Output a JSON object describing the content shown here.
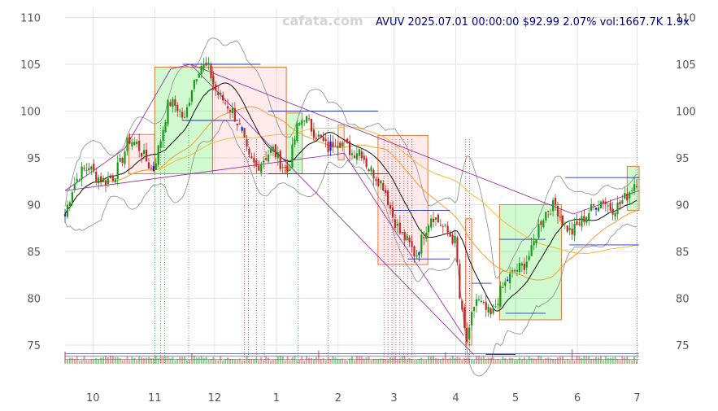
{
  "watermark": "cafata.com",
  "header": "AVUV 2025.07.01 00:00:00 $92.99 2.07% vol:1667.7K 1.9x",
  "chart_data": {
    "type": "candlestick",
    "symbol": "AVUV",
    "ylim": [
      73,
      111
    ],
    "y_ticks": [
      75,
      80,
      85,
      90,
      95,
      100,
      105,
      110
    ],
    "x_ticks": [
      {
        "label": "10",
        "day": 14
      },
      {
        "label": "11",
        "day": 45
      },
      {
        "label": "12",
        "day": 75
      },
      {
        "label": "1",
        "day": 106
      },
      {
        "label": "2",
        "day": 137
      },
      {
        "label": "3",
        "day": 165
      },
      {
        "label": "4",
        "day": 196
      },
      {
        "label": "5",
        "day": 226
      },
      {
        "label": "6",
        "day": 257
      },
      {
        "label": "7",
        "day": 287
      }
    ],
    "close_path": [
      [
        0,
        89
      ],
      [
        4,
        92
      ],
      [
        8,
        93.5
      ],
      [
        12,
        94
      ],
      [
        16,
        93
      ],
      [
        20,
        92.5
      ],
      [
        24,
        93
      ],
      [
        28,
        94.5
      ],
      [
        32,
        97
      ],
      [
        36,
        96.5
      ],
      [
        40,
        95
      ],
      [
        44,
        93.5
      ],
      [
        48,
        97
      ],
      [
        52,
        101
      ],
      [
        56,
        100.5
      ],
      [
        60,
        99
      ],
      [
        64,
        103
      ],
      [
        68,
        105
      ],
      [
        72,
        104.5
      ],
      [
        76,
        102
      ],
      [
        80,
        101
      ],
      [
        84,
        100
      ],
      [
        88,
        98
      ],
      [
        92,
        95
      ],
      [
        96,
        94
      ],
      [
        100,
        95
      ],
      [
        104,
        96
      ],
      [
        108,
        94.5
      ],
      [
        112,
        93.5
      ],
      [
        116,
        98
      ],
      [
        120,
        99.5
      ],
      [
        124,
        98
      ],
      [
        128,
        97
      ],
      [
        132,
        96
      ],
      [
        136,
        97
      ],
      [
        140,
        96.5
      ],
      [
        144,
        95.5
      ],
      [
        148,
        96
      ],
      [
        152,
        94
      ],
      [
        156,
        93
      ],
      [
        160,
        92
      ],
      [
        164,
        89
      ],
      [
        168,
        87
      ],
      [
        172,
        86
      ],
      [
        176,
        84.5
      ],
      [
        180,
        87
      ],
      [
        184,
        89
      ],
      [
        188,
        88
      ],
      [
        192,
        87
      ],
      [
        196,
        86
      ],
      [
        198,
        80
      ],
      [
        200,
        77
      ],
      [
        202,
        75
      ],
      [
        204,
        78
      ],
      [
        206,
        80
      ],
      [
        210,
        79
      ],
      [
        214,
        78
      ],
      [
        218,
        80.5
      ],
      [
        222,
        82
      ],
      [
        226,
        83
      ],
      [
        230,
        83.5
      ],
      [
        234,
        85
      ],
      [
        238,
        88
      ],
      [
        242,
        89.5
      ],
      [
        246,
        90
      ],
      [
        250,
        88
      ],
      [
        254,
        87
      ],
      [
        258,
        88
      ],
      [
        262,
        89
      ],
      [
        266,
        90
      ],
      [
        270,
        90.5
      ],
      [
        274,
        89.5
      ],
      [
        278,
        90
      ],
      [
        282,
        91
      ],
      [
        286,
        92.5
      ]
    ],
    "rectangles": [
      {
        "day0": 32,
        "day1": 45,
        "low": 93.3,
        "high": 97.5,
        "color": "red"
      },
      {
        "day0": 45,
        "day1": 74,
        "low": 93.3,
        "high": 104.7,
        "color": "green"
      },
      {
        "day0": 74,
        "day1": 111,
        "low": 93.3,
        "high": 104.7,
        "color": "red"
      },
      {
        "day0": 111,
        "day1": 119,
        "low": 93.3,
        "high": 99.8,
        "color": "green"
      },
      {
        "day0": 137,
        "day1": 140,
        "low": 94.8,
        "high": 98.5,
        "color": "red"
      },
      {
        "day0": 157,
        "day1": 182,
        "low": 83.6,
        "high": 97.4,
        "color": "red"
      },
      {
        "day0": 201,
        "day1": 204,
        "low": 75,
        "high": 88.5,
        "color": "red"
      },
      {
        "day0": 218,
        "day1": 249,
        "low": 77.7,
        "high": 90,
        "color": "green"
      },
      {
        "day0": 282,
        "day1": 288,
        "low": 89.4,
        "high": 94.1,
        "color": "green"
      }
    ],
    "hlines": [
      {
        "day0": 59,
        "day1": 98,
        "y": 105
      },
      {
        "day0": 59,
        "day1": 87,
        "y": 99
      },
      {
        "day0": 102,
        "day1": 157,
        "y": 100
      },
      {
        "day0": 102,
        "day1": 162,
        "y": 93.3
      },
      {
        "day0": 164,
        "day1": 193,
        "y": 89.4
      },
      {
        "day0": 172,
        "day1": 193,
        "y": 84.2
      },
      {
        "day0": 204,
        "day1": 214,
        "y": 81.6
      },
      {
        "day0": 211,
        "day1": 226,
        "y": 74
      },
      {
        "day0": 218,
        "day1": 241,
        "y": 86.3
      },
      {
        "day0": 221,
        "day1": 241,
        "y": 78.4
      },
      {
        "day0": 251,
        "day1": 288,
        "y": 92.9
      },
      {
        "day0": 253,
        "day1": 288,
        "y": 85.7
      }
    ],
    "diag_lines": [
      [
        [
          0,
          91.5
        ],
        [
          30,
          96
        ]
      ],
      [
        [
          30,
          96
        ],
        [
          53,
          104.5
        ]
      ],
      [
        [
          53,
          104.5
        ],
        [
          63,
          105
        ]
      ],
      [
        [
          63,
          105
        ],
        [
          205,
          74
        ]
      ],
      [
        [
          63,
          105
        ],
        [
          255,
          89
        ]
      ],
      [
        [
          255,
          89
        ],
        [
          288,
          91.5
        ]
      ],
      [
        [
          0,
          91.5
        ],
        [
          140,
          95.5
        ]
      ],
      [
        [
          140,
          95.5
        ],
        [
          200,
          76
        ]
      ]
    ],
    "vlines_green": [
      45,
      48,
      50,
      62,
      117,
      132,
      287
    ],
    "vlines_red": [
      90,
      92,
      96,
      100,
      160,
      162,
      164,
      166,
      168,
      170,
      172,
      174,
      201,
      203
    ]
  }
}
